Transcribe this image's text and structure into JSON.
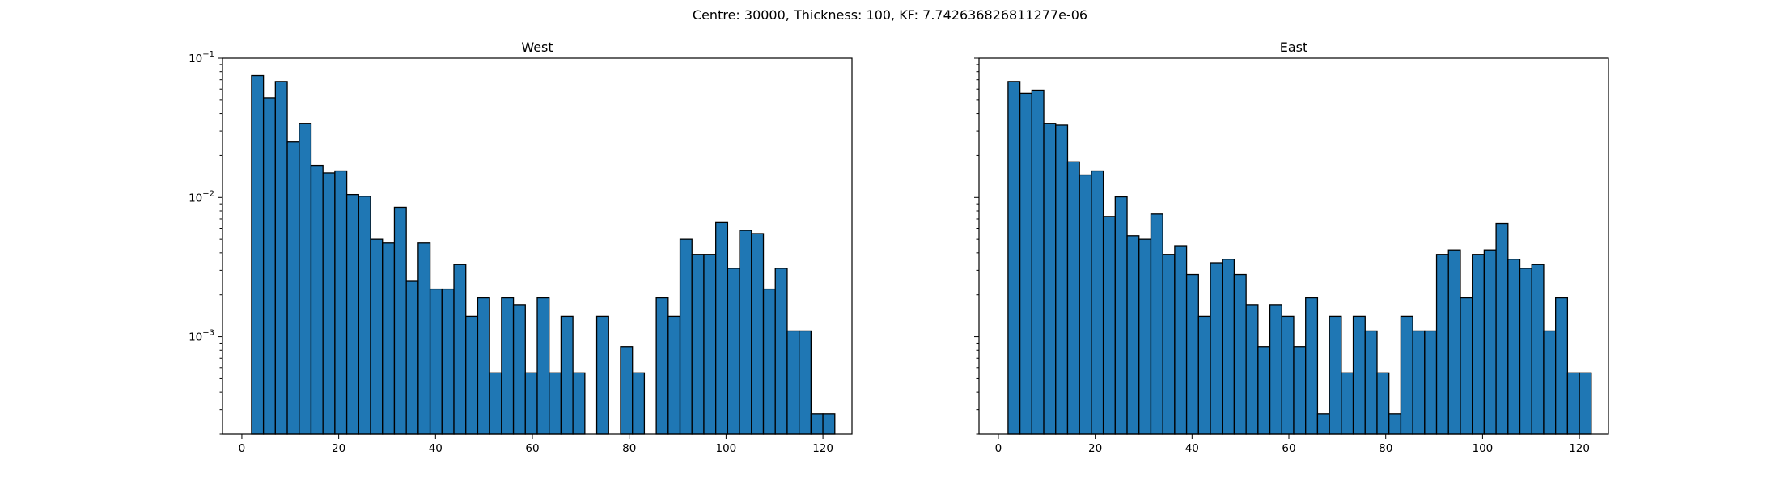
{
  "figure": {
    "suptitle": "Centre: 30000, Thickness: 100, KF: 7.742636826811277e-06",
    "bar_color": "#1f77b4",
    "edge_color": "#000000"
  },
  "chart_data": [
    {
      "type": "bar",
      "title": "West",
      "xlabel": "",
      "ylabel": "",
      "y_scale": "log",
      "xlim": [
        -4,
        126
      ],
      "ylim": [
        0.0002,
        0.1
      ],
      "x_ticks": [
        0,
        20,
        40,
        60,
        80,
        100,
        120
      ],
      "x_tick_labels": [
        "0",
        "20",
        "40",
        "60",
        "80",
        "100",
        "120"
      ],
      "y_ticks": [
        0.001,
        0.01,
        0.1
      ],
      "y_tick_labels": [
        "10^-3",
        "10^-2",
        "10^-1"
      ],
      "bin_start": 2,
      "bin_width": 2.4583,
      "values": [
        0.075,
        0.052,
        0.068,
        0.025,
        0.034,
        0.017,
        0.015,
        0.0155,
        0.0105,
        0.0102,
        0.005,
        0.0047,
        0.0085,
        0.0025,
        0.0047,
        0.0022,
        0.0022,
        0.0033,
        0.0014,
        0.0019,
        0.00055,
        0.0019,
        0.0017,
        0.00055,
        0.0019,
        0.00055,
        0.0014,
        0.00055,
        0,
        0.0014,
        0,
        0.00085,
        0.00055,
        0,
        0.0019,
        0.0014,
        0.005,
        0.0039,
        0.0039,
        0.0066,
        0.0031,
        0.0058,
        0.0055,
        0.0022,
        0.0031,
        0.0011,
        0.0011,
        0.00028,
        0.00028
      ]
    },
    {
      "type": "bar",
      "title": "East",
      "xlabel": "",
      "ylabel": "",
      "y_scale": "log",
      "xlim": [
        -4,
        126
      ],
      "ylim": [
        0.0002,
        0.1
      ],
      "x_ticks": [
        0,
        20,
        40,
        60,
        80,
        100,
        120
      ],
      "x_tick_labels": [
        "0",
        "20",
        "40",
        "60",
        "80",
        "100",
        "120"
      ],
      "y_ticks": [
        0.001,
        0.01,
        0.1
      ],
      "y_tick_labels": [],
      "bin_start": 2,
      "bin_width": 2.4583,
      "values": [
        0.068,
        0.056,
        0.059,
        0.034,
        0.033,
        0.018,
        0.0145,
        0.0155,
        0.0073,
        0.0101,
        0.0053,
        0.005,
        0.0076,
        0.0039,
        0.0045,
        0.0028,
        0.0014,
        0.0034,
        0.0036,
        0.0028,
        0.0017,
        0.00085,
        0.0017,
        0.0014,
        0.00085,
        0.0019,
        0.00028,
        0.0014,
        0.00055,
        0.0014,
        0.0011,
        0.00055,
        0.00028,
        0.0014,
        0.0011,
        0.0011,
        0.0039,
        0.0042,
        0.0019,
        0.0039,
        0.0042,
        0.0065,
        0.0036,
        0.0031,
        0.0033,
        0.0011,
        0.0019,
        0.00055,
        0.00055
      ]
    }
  ]
}
